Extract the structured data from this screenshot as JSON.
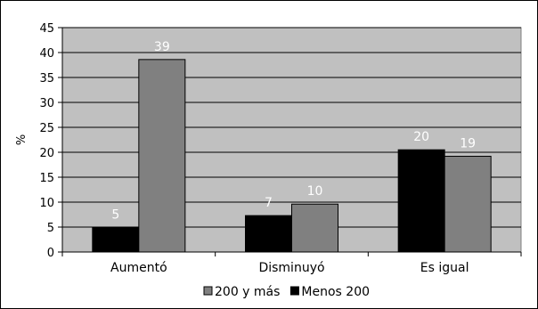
{
  "chart_data": {
    "type": "bar",
    "ylabel": "%",
    "ylim": [
      0,
      45
    ],
    "yticks": [
      0,
      5,
      10,
      15,
      20,
      25,
      30,
      35,
      40,
      45
    ],
    "grid": true,
    "legend_position": "bottom",
    "categories": [
      "Aumentó",
      "Disminuyó",
      "Es igual"
    ],
    "series": [
      {
        "name": "Menos 200",
        "color": "#000000",
        "values": [
          5,
          7,
          20
        ],
        "plotted": [
          4.9,
          7.3,
          20.5
        ]
      },
      {
        "name": "200 y más",
        "color": "#808080",
        "values": [
          39,
          10,
          19
        ],
        "plotted": [
          38.6,
          9.6,
          19.2
        ]
      }
    ],
    "legend_order": [
      "200 y más",
      "Menos 200"
    ]
  }
}
